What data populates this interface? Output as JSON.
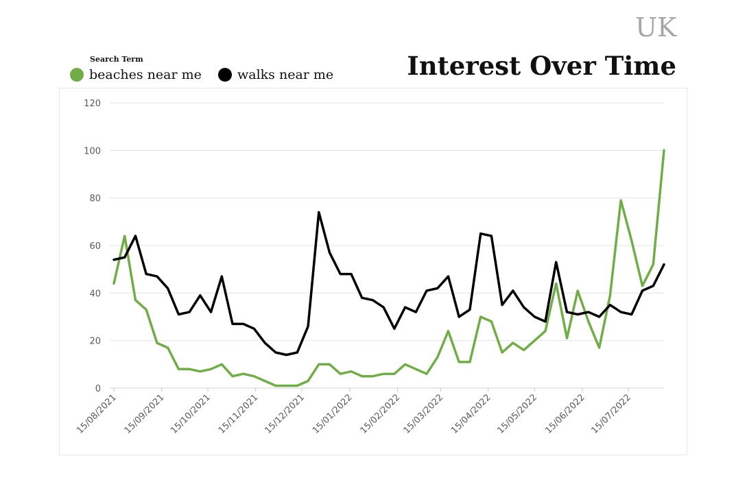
{
  "header": {
    "region": "UK",
    "title": "Interest Over Time"
  },
  "legend": {
    "heading": "Search Term"
  },
  "chart_data": {
    "type": "line",
    "title": "Interest Over Time",
    "xlabel": "",
    "ylabel": "",
    "ylim": [
      0,
      120
    ],
    "yticks": [
      0,
      20,
      40,
      60,
      80,
      100,
      120
    ],
    "grid": true,
    "legend_position": "top-left",
    "x": [
      "15/08/2021",
      "22/08/2021",
      "29/08/2021",
      "05/09/2021",
      "12/09/2021",
      "19/09/2021",
      "26/09/2021",
      "03/10/2021",
      "10/10/2021",
      "17/10/2021",
      "24/10/2021",
      "31/10/2021",
      "07/11/2021",
      "14/11/2021",
      "21/11/2021",
      "28/11/2021",
      "05/12/2021",
      "12/12/2021",
      "19/12/2021",
      "26/12/2021",
      "02/01/2022",
      "09/01/2022",
      "16/01/2022",
      "23/01/2022",
      "30/01/2022",
      "06/02/2022",
      "13/02/2022",
      "20/02/2022",
      "27/02/2022",
      "06/03/2022",
      "13/03/2022",
      "20/03/2022",
      "27/03/2022",
      "03/04/2022",
      "10/04/2022",
      "17/04/2022",
      "24/04/2022",
      "01/05/2022",
      "08/05/2022",
      "15/05/2022",
      "22/05/2022",
      "29/05/2022",
      "05/06/2022",
      "12/06/2022",
      "19/06/2022",
      "26/06/2022",
      "03/07/2022",
      "10/07/2022",
      "17/07/2022",
      "24/07/2022",
      "31/07/2022",
      "07/08/2022"
    ],
    "x_tick_labels": [
      "15/08/2021",
      "15/09/2021",
      "15/10/2021",
      "15/11/2021",
      "15/12/2021",
      "15/01/2022",
      "15/02/2022",
      "15/03/2022",
      "15/04/2022",
      "15/05/2022",
      "15/06/2022",
      "15/07/2022"
    ],
    "x_tick_index": [
      0,
      4.43,
      8.71,
      13.14,
      17.43,
      21.86,
      26.29,
      30.29,
      34.71,
      39,
      43.43,
      47.71
    ],
    "series": [
      {
        "name": "beaches near me",
        "color": "#70ad47",
        "values": [
          44,
          64,
          37,
          33,
          19,
          17,
          8,
          8,
          7,
          8,
          10,
          5,
          6,
          5,
          3,
          1,
          1,
          1,
          3,
          10,
          10,
          6,
          7,
          5,
          5,
          6,
          6,
          10,
          8,
          6,
          13,
          24,
          11,
          11,
          30,
          28,
          15,
          19,
          16,
          20,
          24,
          44,
          21,
          41,
          28,
          17,
          39,
          79,
          62,
          43,
          52,
          100
        ]
      },
      {
        "name": "walks near me",
        "color": "#000000",
        "values": [
          54,
          55,
          64,
          48,
          47,
          42,
          31,
          32,
          39,
          32,
          47,
          27,
          27,
          25,
          19,
          15,
          14,
          15,
          26,
          74,
          57,
          48,
          48,
          38,
          37,
          34,
          25,
          34,
          32,
          41,
          42,
          47,
          30,
          33,
          65,
          64,
          35,
          41,
          34,
          30,
          28,
          53,
          32,
          31,
          32,
          30,
          35,
          32,
          31,
          41,
          43,
          52
        ]
      }
    ]
  }
}
